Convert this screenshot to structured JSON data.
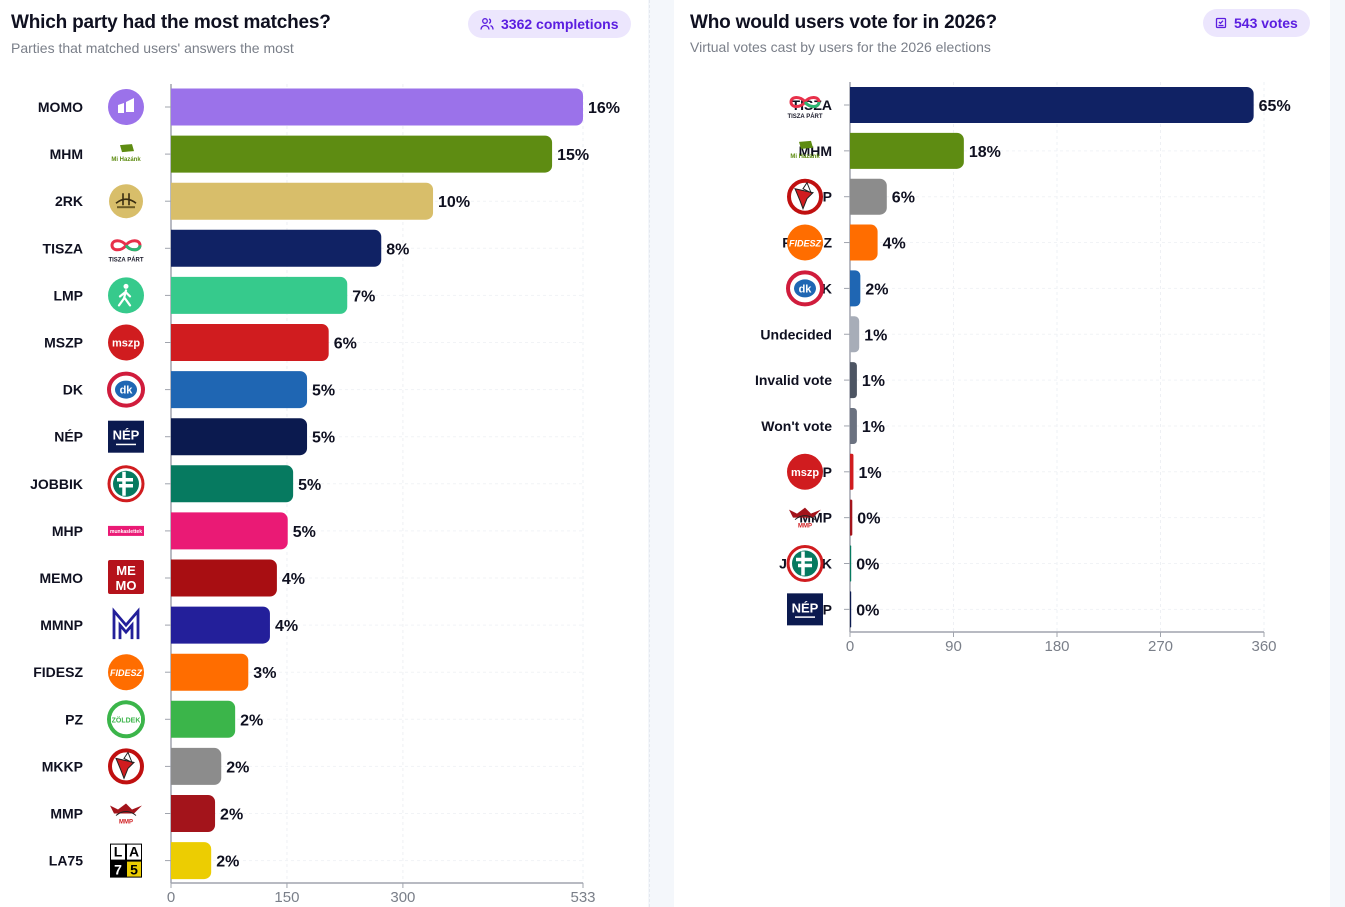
{
  "left_panel": {
    "title": "Which party had the most matches?",
    "subtitle": "Parties that matched users' answers the most",
    "badge": {
      "icon": "users-icon",
      "label": "3362 completions"
    }
  },
  "right_panel": {
    "title": "Who would users vote for in 2026?",
    "subtitle": "Virtual votes cast by users for the 2026 elections",
    "badge": {
      "icon": "ballot-box-icon",
      "label": "543 votes"
    }
  },
  "chart_data": [
    {
      "type": "bar",
      "orientation": "horizontal",
      "title": "Which party had the most matches?",
      "subtitle": "Parties that matched users' answers the most",
      "xlabel": "",
      "ylabel": "",
      "xlim": [
        0,
        533
      ],
      "xticks": [
        "0",
        "150",
        "300",
        "533"
      ],
      "xtick_values": [
        0,
        150,
        300,
        533
      ],
      "grid": true,
      "legend": "none",
      "categories": [
        "MOMO",
        "MHM",
        "2RK",
        "TISZA",
        "LMP",
        "MSZP",
        "DK",
        "NÉP",
        "JOBBIK",
        "MHP",
        "MEMO",
        "MMNP",
        "FIDESZ",
        "PZ",
        "MKKP",
        "MMP",
        "LA75"
      ],
      "values": [
        533,
        493,
        339,
        272,
        228,
        204,
        176,
        176,
        158,
        151,
        137,
        128,
        100,
        83,
        65,
        57,
        52
      ],
      "labels": [
        "16%",
        "15%",
        "10%",
        "8%",
        "7%",
        "6%",
        "5%",
        "5%",
        "5%",
        "5%",
        "4%",
        "4%",
        "3%",
        "2%",
        "2%",
        "2%",
        "2%"
      ],
      "colors": [
        "#9b72ea",
        "#5e8c12",
        "#d8be6a",
        "#102264",
        "#36ca8c",
        "#d01c1f",
        "#1f66b3",
        "#0b1a4f",
        "#067a60",
        "#ea1a75",
        "#a80e12",
        "#231f9a",
        "#ff6d00",
        "#3bb54a",
        "#8c8c8c",
        "#a3141b",
        "#eccd02"
      ],
      "logos": [
        "momo-logo",
        "mi-hazank-logo",
        "2rk-logo",
        "tisza-logo",
        "lmp-logo",
        "mszp-logo",
        "dk-logo",
        "nep-logo",
        "jobbik-logo",
        "mhp-logo",
        "memo-logo",
        "mmnp-logo",
        "fidesz-logo",
        "pz-logo",
        "mkkp-logo",
        "mmp-logo",
        "la75-logo"
      ]
    },
    {
      "type": "bar",
      "orientation": "horizontal",
      "title": "Who would users vote for in 2026?",
      "subtitle": "Virtual votes cast by users for the 2026 elections",
      "xlabel": "",
      "ylabel": "",
      "xlim": [
        0,
        360
      ],
      "xticks": [
        "0",
        "90",
        "180",
        "270",
        "360"
      ],
      "xtick_values": [
        0,
        90,
        180,
        270,
        360
      ],
      "grid": true,
      "legend": "none",
      "categories": [
        "TISZA",
        "MHM",
        "MKKP",
        "FIDESZ",
        "DK",
        "Undecided",
        "Invalid vote",
        "Won't vote",
        "MSZP",
        "MMP",
        "JOBBIK",
        "NÉP"
      ],
      "values": [
        351,
        99,
        32,
        24,
        9,
        8,
        6,
        6,
        3,
        2,
        1,
        1
      ],
      "labels": [
        "65%",
        "18%",
        "6%",
        "4%",
        "2%",
        "1%",
        "1%",
        "1%",
        "1%",
        "0%",
        "0%",
        "0%"
      ],
      "colors": [
        "#102264",
        "#5e8c12",
        "#8c8c8c",
        "#ff6d00",
        "#1f66b3",
        "#a7adb8",
        "#4d5563",
        "#6b7280",
        "#d01c1f",
        "#a3141b",
        "#067a60",
        "#0b1a4f"
      ],
      "logos": [
        "tisza-logo",
        "mi-hazank-logo",
        "mkkp-logo",
        "fidesz-logo",
        "dk-logo",
        "",
        "",
        "",
        "mszp-logo",
        "mmp-logo",
        "jobbik-logo",
        "nep-logo"
      ]
    }
  ],
  "logo_texts": {
    "mi-hazank": "Mi Hazánk",
    "tisza": "TISZA PÁRT",
    "mszp": "mszp",
    "dk": "dk",
    "nep": "NÉP",
    "mhp": "munkaslettek",
    "memo_top": "ME",
    "memo_bottom": "MO",
    "mmnp": "M",
    "fidesz": "FIDESZ",
    "pz": "ZÖLDEK",
    "mmp": "MMP",
    "la75_1": "L",
    "la75_2": "A",
    "la75_3": "7",
    "la75_4": "5"
  }
}
